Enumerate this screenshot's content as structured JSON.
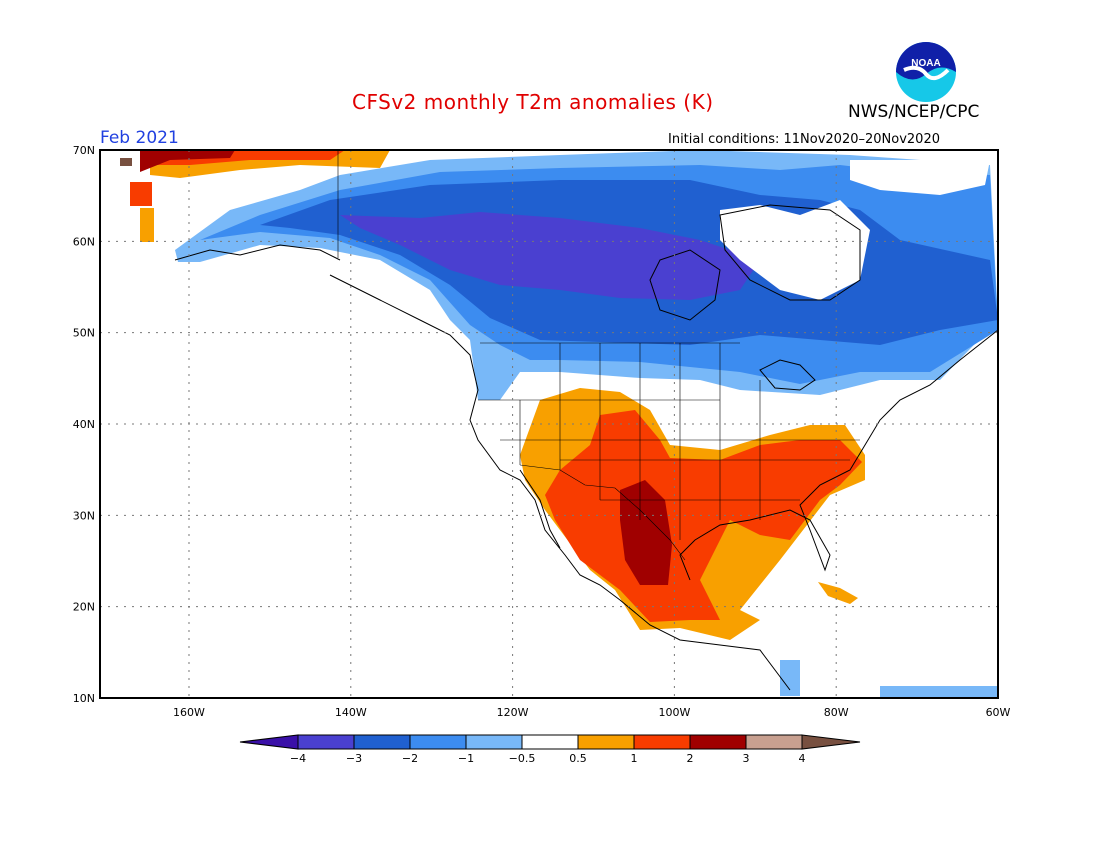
{
  "title": "CFSv2 monthly T2m anomalies (K)",
  "agency": "NWS/NCEP/CPC",
  "period": "Feb 2021",
  "initial_conditions": "Initial conditions: 11Nov2020–20Nov2020",
  "logo_text": "NOAA",
  "map": {
    "lon_range": [
      -171,
      -60
    ],
    "lat_range": [
      10,
      70
    ],
    "lat_ticks": [
      "70N",
      "60N",
      "50N",
      "40N",
      "30N",
      "20N",
      "10N"
    ],
    "lon_ticks": [
      "160W",
      "140W",
      "120W",
      "100W",
      "80W",
      "60W"
    ],
    "grid": true
  },
  "colorbar": {
    "labels": [
      "−4",
      "−3",
      "−2",
      "−1",
      "−0.5",
      "0.5",
      "1",
      "2",
      "3",
      "4"
    ],
    "colors": [
      "#3a10a8",
      "#4a40d0",
      "#2060d0",
      "#3c8cf0",
      "#78b8f8",
      "#ffffff",
      "#f8a000",
      "#f83c00",
      "#a00000",
      "#c8a090",
      "#785040"
    ]
  }
}
